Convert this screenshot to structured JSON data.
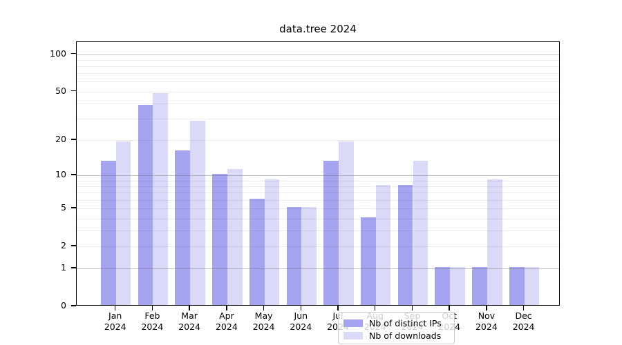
{
  "chart_data": {
    "type": "bar",
    "title": "data.tree 2024",
    "categories": [
      "Jan",
      "Feb",
      "Mar",
      "Apr",
      "May",
      "Jun",
      "Jul",
      "Aug",
      "Sep",
      "Oct",
      "Nov",
      "Dec"
    ],
    "category_year": "2024",
    "series": [
      {
        "name": "Nb of distinct IPs",
        "color": "#a4a4f0",
        "values": [
          13,
          38,
          16,
          10,
          6,
          5,
          13,
          4,
          8,
          1,
          1,
          1
        ]
      },
      {
        "name": "Nb of downloads",
        "color": "#dadaf8",
        "values": [
          19,
          47,
          28,
          11,
          9,
          5,
          19,
          8,
          13,
          1,
          9,
          1
        ]
      }
    ],
    "yscale": "log1p",
    "ylim": [
      0,
      125
    ],
    "yticks": [
      100,
      50,
      20,
      10,
      5,
      2,
      1,
      0
    ],
    "major_gridlines": [
      1,
      10,
      100
    ],
    "minor_gridlines": [
      2,
      3,
      4,
      5,
      6,
      7,
      8,
      9,
      20,
      30,
      40,
      50,
      60,
      70,
      80,
      90
    ],
    "grid": true,
    "legend_position": "bottom-center"
  },
  "colors": {
    "spine": "#000000",
    "major_grid": "rgba(110,110,110,0.42)",
    "minor_grid": "rgba(0,0,0,0.07)"
  }
}
